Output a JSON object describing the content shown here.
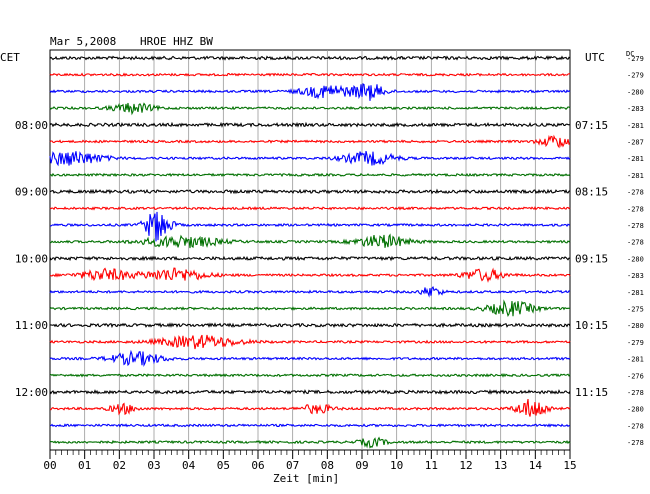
{
  "header": {
    "date": "Mar 5,2008",
    "station": "HROE HHZ BW",
    "left_zone": "CET",
    "right_zone": "UTC",
    "dc_label": "DC"
  },
  "chart_data": {
    "type": "line",
    "title": "Mar 5,2008   HROE HHZ BW",
    "xlabel": "Zeit [min]",
    "x_ticks": [
      "00",
      "01",
      "02",
      "03",
      "04",
      "05",
      "06",
      "07",
      "08",
      "09",
      "10",
      "11",
      "12",
      "13",
      "14",
      "15"
    ],
    "xlim": [
      0,
      15
    ],
    "grid": true,
    "trace_interval_min": 15,
    "row_count": 24,
    "colors": [
      "#000000",
      "#ff0000",
      "#0000ff",
      "#007000"
    ],
    "left_hour_labels": [
      {
        "row": 4,
        "label": "08:00"
      },
      {
        "row": 8,
        "label": "09:00"
      },
      {
        "row": 12,
        "label": "10:00"
      },
      {
        "row": 16,
        "label": "11:00"
      },
      {
        "row": 20,
        "label": "12:00"
      }
    ],
    "right_hour_labels": [
      {
        "row": 4,
        "label": "07:15"
      },
      {
        "row": 8,
        "label": "08:15"
      },
      {
        "row": 12,
        "label": "09:15"
      },
      {
        "row": 16,
        "label": "10:15"
      },
      {
        "row": 20,
        "label": "11:15"
      }
    ],
    "dc_offsets": [
      "-279",
      "-279",
      "-280",
      "-283",
      "-281",
      "-287",
      "-281",
      "-281",
      "-278",
      "-278",
      "-278",
      "-278",
      "-280",
      "-283",
      "-281",
      "-275",
      "-280",
      "-279",
      "-281",
      "-276",
      "-278",
      "-280",
      "-278",
      "-278"
    ],
    "events": [
      {
        "row": 2,
        "minute": 8.0,
        "amp": 2.0,
        "width": 1.0
      },
      {
        "row": 2,
        "minute": 9.2,
        "amp": 2.5,
        "width": 0.6
      },
      {
        "row": 3,
        "minute": 2.4,
        "amp": 1.5,
        "width": 0.8
      },
      {
        "row": 5,
        "minute": 14.6,
        "amp": 1.8,
        "width": 0.6
      },
      {
        "row": 6,
        "minute": 0.6,
        "amp": 2.2,
        "width": 1.2
      },
      {
        "row": 6,
        "minute": 9.2,
        "amp": 2.0,
        "width": 1.0
      },
      {
        "row": 10,
        "minute": 3.1,
        "amp": 5.0,
        "width": 0.5
      },
      {
        "row": 11,
        "minute": 3.8,
        "amp": 1.8,
        "width": 1.5
      },
      {
        "row": 11,
        "minute": 9.6,
        "amp": 2.0,
        "width": 1.0
      },
      {
        "row": 13,
        "minute": 1.6,
        "amp": 1.8,
        "width": 1.0
      },
      {
        "row": 13,
        "minute": 3.6,
        "amp": 2.0,
        "width": 1.2
      },
      {
        "row": 13,
        "minute": 12.5,
        "amp": 1.8,
        "width": 0.8
      },
      {
        "row": 14,
        "minute": 11.0,
        "amp": 1.6,
        "width": 0.4
      },
      {
        "row": 15,
        "minute": 13.3,
        "amp": 2.2,
        "width": 0.9
      },
      {
        "row": 17,
        "minute": 4.3,
        "amp": 2.0,
        "width": 1.5
      },
      {
        "row": 18,
        "minute": 2.5,
        "amp": 2.0,
        "width": 1.0
      },
      {
        "row": 21,
        "minute": 2.1,
        "amp": 1.5,
        "width": 0.5
      },
      {
        "row": 21,
        "minute": 7.7,
        "amp": 1.4,
        "width": 0.6
      },
      {
        "row": 21,
        "minute": 13.9,
        "amp": 3.0,
        "width": 0.6
      },
      {
        "row": 23,
        "minute": 9.3,
        "amp": 1.4,
        "width": 0.5
      }
    ]
  }
}
